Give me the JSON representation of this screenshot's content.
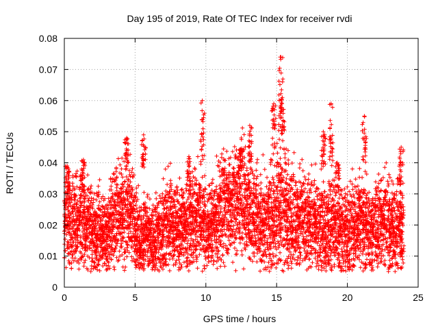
{
  "chart_data": {
    "type": "scatter",
    "title": "Day 195 of 2019, Rate Of TEC Index for receiver rvdi",
    "xlabel": "GPS time / hours",
    "ylabel": "ROTI / TECUs",
    "xlim": [
      0,
      25
    ],
    "ylim": [
      0,
      0.08
    ],
    "x_ticks": [
      0,
      5,
      10,
      15,
      20,
      25
    ],
    "x_tick_labels": [
      "0",
      "5",
      "10",
      "15",
      "20",
      "25"
    ],
    "y_ticks": [
      0,
      0.01,
      0.02,
      0.03,
      0.04,
      0.05,
      0.06,
      0.07,
      0.08
    ],
    "y_tick_labels": [
      "0",
      "0.01",
      "0.02",
      "0.03",
      "0.04",
      "0.05",
      "0.06",
      "0.07",
      "0.08"
    ],
    "grid": true,
    "marker": "+",
    "series": [
      {
        "name": "ROTI",
        "color": "#ff0000",
        "x": [
          0.0,
          0.25,
          0.5,
          0.75,
          1.0,
          1.25,
          1.5,
          1.75,
          2.0,
          2.25,
          2.5,
          2.75,
          3.0,
          3.25,
          3.5,
          3.75,
          4.0,
          4.25,
          4.5,
          4.75,
          5.0,
          5.25,
          5.5,
          5.75,
          6.0,
          6.25,
          6.5,
          6.75,
          7.0,
          7.25,
          7.5,
          7.75,
          8.0,
          8.25,
          8.5,
          8.75,
          9.0,
          9.25,
          9.5,
          9.75,
          10.0,
          10.25,
          10.5,
          10.75,
          11.0,
          11.25,
          11.5,
          11.75,
          12.0,
          12.25,
          12.5,
          12.75,
          13.0,
          13.25,
          13.5,
          13.75,
          14.0,
          14.25,
          14.5,
          14.75,
          15.0,
          15.25,
          15.5,
          15.75,
          16.0,
          16.25,
          16.5,
          16.75,
          17.0,
          17.25,
          17.5,
          17.75,
          18.0,
          18.25,
          18.5,
          18.75,
          19.0,
          19.25,
          19.5,
          19.75,
          20.0,
          20.25,
          20.5,
          20.75,
          21.0,
          21.25,
          21.5,
          21.75,
          22.0,
          22.25,
          22.5,
          22.75,
          23.0,
          23.25,
          23.5,
          23.75,
          24.0
        ],
        "y": [
          0.021,
          0.024,
          0.019,
          0.022,
          0.02,
          0.025,
          0.018,
          0.021,
          0.019,
          0.017,
          0.02,
          0.018,
          0.016,
          0.02,
          0.022,
          0.025,
          0.024,
          0.022,
          0.026,
          0.023,
          0.021,
          0.017,
          0.016,
          0.018,
          0.015,
          0.014,
          0.016,
          0.018,
          0.019,
          0.021,
          0.022,
          0.02,
          0.019,
          0.018,
          0.021,
          0.02,
          0.022,
          0.021,
          0.023,
          0.022,
          0.02,
          0.019,
          0.021,
          0.022,
          0.024,
          0.026,
          0.025,
          0.024,
          0.027,
          0.028,
          0.029,
          0.027,
          0.026,
          0.024,
          0.023,
          0.022,
          0.021,
          0.02,
          0.022,
          0.023,
          0.026,
          0.027,
          0.026,
          0.025,
          0.024,
          0.022,
          0.021,
          0.022,
          0.02,
          0.019,
          0.021,
          0.022,
          0.02,
          0.019,
          0.018,
          0.02,
          0.021,
          0.019,
          0.02,
          0.018,
          0.017,
          0.019,
          0.02,
          0.021,
          0.022,
          0.02,
          0.019,
          0.018,
          0.019,
          0.02,
          0.021,
          0.022,
          0.02,
          0.019,
          0.02,
          0.019,
          0.02
        ],
        "spread": [
          0.008,
          0.01,
          0.009,
          0.01,
          0.01,
          0.011,
          0.009,
          0.009,
          0.008,
          0.008,
          0.008,
          0.008,
          0.008,
          0.009,
          0.01,
          0.01,
          0.01,
          0.01,
          0.01,
          0.01,
          0.009,
          0.008,
          0.008,
          0.008,
          0.007,
          0.007,
          0.008,
          0.009,
          0.009,
          0.01,
          0.01,
          0.009,
          0.009,
          0.009,
          0.009,
          0.009,
          0.01,
          0.01,
          0.01,
          0.01,
          0.009,
          0.009,
          0.01,
          0.01,
          0.01,
          0.011,
          0.011,
          0.01,
          0.011,
          0.011,
          0.012,
          0.011,
          0.011,
          0.011,
          0.01,
          0.01,
          0.01,
          0.01,
          0.011,
          0.012,
          0.013,
          0.013,
          0.013,
          0.012,
          0.012,
          0.011,
          0.01,
          0.01,
          0.01,
          0.01,
          0.01,
          0.01,
          0.01,
          0.01,
          0.009,
          0.01,
          0.01,
          0.01,
          0.01,
          0.009,
          0.009,
          0.009,
          0.01,
          0.01,
          0.01,
          0.01,
          0.009,
          0.009,
          0.009,
          0.01,
          0.01,
          0.01,
          0.01,
          0.009,
          0.009,
          0.009,
          0.009
        ],
        "peaks": [
          {
            "x": 0.2,
            "ymin": 0.03,
            "ymax": 0.039
          },
          {
            "x": 1.35,
            "ymin": 0.03,
            "ymax": 0.041
          },
          {
            "x": 4.4,
            "ymin": 0.038,
            "ymax": 0.048
          },
          {
            "x": 5.6,
            "ymin": 0.038,
            "ymax": 0.049
          },
          {
            "x": 8.8,
            "ymin": 0.032,
            "ymax": 0.042
          },
          {
            "x": 9.75,
            "ymin": 0.04,
            "ymax": 0.06
          },
          {
            "x": 12.5,
            "ymin": 0.038,
            "ymax": 0.048
          },
          {
            "x": 13.1,
            "ymin": 0.04,
            "ymax": 0.052
          },
          {
            "x": 14.8,
            "ymin": 0.04,
            "ymax": 0.059
          },
          {
            "x": 15.3,
            "ymin": 0.045,
            "ymax": 0.074
          },
          {
            "x": 15.4,
            "ymin": 0.05,
            "ymax": 0.061
          },
          {
            "x": 18.3,
            "ymin": 0.038,
            "ymax": 0.05
          },
          {
            "x": 18.85,
            "ymin": 0.04,
            "ymax": 0.059
          },
          {
            "x": 19.3,
            "ymin": 0.032,
            "ymax": 0.04
          },
          {
            "x": 21.2,
            "ymin": 0.04,
            "ymax": 0.055
          },
          {
            "x": 23.8,
            "ymin": 0.03,
            "ymax": 0.045
          }
        ]
      }
    ]
  }
}
